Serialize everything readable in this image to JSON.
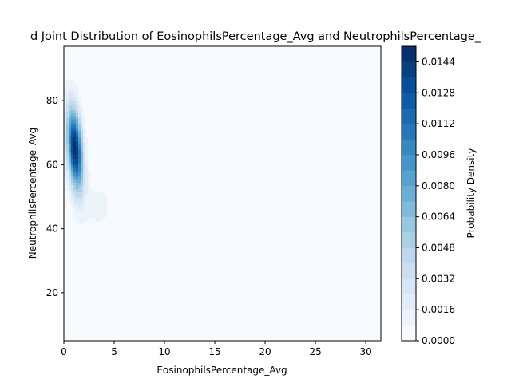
{
  "chart_data": {
    "type": "kde2d-filled-contour",
    "title": "d Joint Distribution of EosinophilsPercentage_Avg and NeutrophilsPercentage_",
    "xlabel": "EosinophilsPercentage_Avg",
    "ylabel": "NeutrophilsPercentage_Avg",
    "xlim": [
      0,
      31.5
    ],
    "ylim": [
      5,
      97
    ],
    "x_ticks": [
      0,
      5,
      10,
      15,
      20,
      25,
      30
    ],
    "y_ticks": [
      20,
      40,
      60,
      80
    ],
    "colormap": "Blues",
    "colorbar": {
      "label": "Probability Density",
      "range": [
        0,
        0.0152
      ],
      "ticks": [
        "0.0000",
        "0.0016",
        "0.0032",
        "0.0048",
        "0.0064",
        "0.0080",
        "0.0096",
        "0.0112",
        "0.0128",
        "0.0144"
      ],
      "levels": [
        0,
        0.0008,
        0.0016,
        0.0024,
        0.0032,
        0.004,
        0.0048,
        0.0056,
        0.0064,
        0.0072,
        0.008,
        0.0088,
        0.0096,
        0.0104,
        0.0112,
        0.012,
        0.0128,
        0.0136,
        0.0144,
        0.0152
      ]
    },
    "density_components": [
      {
        "cx": 1.1,
        "cy": 65,
        "sx": 0.55,
        "sy": 9,
        "rho": -0.35,
        "weight": 0.0149
      },
      {
        "cx": 3.5,
        "cy": 47,
        "sx": 1.3,
        "sy": 7,
        "rho": 0.0,
        "weight": 0.001
      }
    ]
  }
}
